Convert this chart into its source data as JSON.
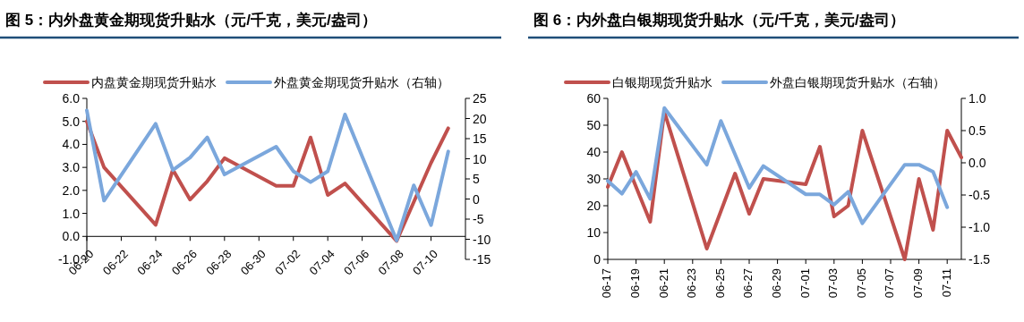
{
  "chart_data": [
    {
      "type": "line",
      "title": "图 5：内外盘黄金期现货升贴水（元/千克，美元/盎司）",
      "legend": "top",
      "grid": false,
      "line_style": "solid",
      "xlim": [
        "--06-20",
        "--07-12"
      ],
      "xticks": [
        {
          "value": "--06-20",
          "label": "06-20"
        },
        {
          "value": "--06-22",
          "label": "06-22"
        },
        {
          "value": "--06-24",
          "label": "06-24"
        },
        {
          "value": "--06-26",
          "label": "06-26"
        },
        {
          "value": "--06-28",
          "label": "06-28"
        },
        {
          "value": "--06-30",
          "label": "06-30"
        },
        {
          "value": "--07-02",
          "label": "07-02"
        },
        {
          "value": "--07-04",
          "label": "07-04"
        },
        {
          "value": "--07-06",
          "label": "07-06"
        },
        {
          "value": "--07-08",
          "label": "07-08"
        },
        {
          "value": "--07-10",
          "label": "07-10"
        }
      ],
      "ylim": [
        -1,
        6
      ],
      "yticks": [
        {
          "value": -1,
          "label": "-1.0"
        },
        {
          "value": 0,
          "label": "0.0"
        },
        {
          "value": 1,
          "label": "1.0"
        },
        {
          "value": 2,
          "label": "2.0"
        },
        {
          "value": 3,
          "label": "3.0"
        },
        {
          "value": 4,
          "label": "4.0"
        },
        {
          "value": 5,
          "label": "5.0"
        },
        {
          "value": 6,
          "label": "6.0"
        }
      ],
      "y2lim": [
        -15,
        25
      ],
      "y2ticks": [
        -15,
        -10,
        -5,
        0,
        5,
        10,
        15,
        20,
        25
      ],
      "series": [
        {
          "name": "内盘黄金期现货升贴水",
          "color": "#c0504d",
          "x": [
            "--06-20",
            "--06-21",
            "--06-24",
            "--06-25",
            "--06-26",
            "--06-27",
            "--06-28",
            "--07-01",
            "--07-02",
            "--07-03",
            "--07-04",
            "--07-05",
            "--07-08",
            "--07-09",
            "--07-10",
            "--07-11"
          ],
          "values": [
            5.0,
            3.0,
            0.5,
            2.9,
            1.6,
            2.4,
            3.4,
            2.2,
            2.2,
            4.3,
            1.8,
            2.3,
            -0.2,
            1.5,
            3.2,
            4.7
          ]
        },
        {
          "name": "外盘黄金期现货升贴水（右轴）",
          "color": "#7ba7dc",
          "axis": "y2",
          "x": [
            "--06-20",
            "--06-21",
            "--06-24",
            "--06-25",
            "--06-26",
            "--06-27",
            "--06-28",
            "--07-01",
            "--07-02",
            "--07-03",
            "--07-04",
            "--07-05",
            "--07-08",
            "--07-09",
            "--07-10",
            "--07-11"
          ],
          "values": [
            22,
            -0.4,
            18.7,
            7.2,
            10.3,
            15.3,
            6.1,
            13,
            6.9,
            4.2,
            6.9,
            21,
            -10.3,
            3.4,
            -6.5,
            11.8
          ]
        }
      ]
    },
    {
      "type": "line",
      "title": "图 6：内外盘白银期现货升贴水（元/千克，美元/盎司）",
      "legend": "top",
      "grid": false,
      "line_style": "solid",
      "xlim": [
        "--06-17",
        "--07-12"
      ],
      "xticks": [
        {
          "value": "--06-17",
          "label": "06-17"
        },
        {
          "value": "--06-19",
          "label": "06-19"
        },
        {
          "value": "--06-21",
          "label": "06-21"
        },
        {
          "value": "--06-23",
          "label": "06-23"
        },
        {
          "value": "--06-25",
          "label": "06-25"
        },
        {
          "value": "--06-27",
          "label": "06-27"
        },
        {
          "value": "--06-29",
          "label": "06-29"
        },
        {
          "value": "--07-01",
          "label": "07-01"
        },
        {
          "value": "--07-03",
          "label": "07-03"
        },
        {
          "value": "--07-05",
          "label": "07-05"
        },
        {
          "value": "--07-07",
          "label": "07-07"
        },
        {
          "value": "--07-09",
          "label": "07-09"
        },
        {
          "value": "--07-11",
          "label": "07-11"
        }
      ],
      "ylim": [
        0,
        60
      ],
      "yticks": [
        0,
        10,
        20,
        30,
        40,
        50,
        60
      ],
      "y2lim": [
        -1.5,
        1.0
      ],
      "y2ticks": [
        {
          "value": -1.5,
          "label": "-1.5"
        },
        {
          "value": -1,
          "label": "-1.0"
        },
        {
          "value": -0.5,
          "label": "-0.5"
        },
        {
          "value": 0,
          "label": "0.0"
        },
        {
          "value": 0.5,
          "label": "0.5"
        },
        {
          "value": 1,
          "label": "1.0"
        }
      ],
      "series": [
        {
          "name": "白银期现货升贴水",
          "color": "#c0504d",
          "x": [
            "--06-17",
            "--06-18",
            "--06-19",
            "--06-20",
            "--06-21",
            "--06-24",
            "--06-25",
            "--06-26",
            "--06-27",
            "--06-28",
            "--07-01",
            "--07-02",
            "--07-03",
            "--07-04",
            "--07-05",
            "--07-08",
            "--07-09",
            "--07-10",
            "--07-11",
            "--07-12"
          ],
          "values": [
            27,
            40,
            27,
            14,
            55,
            4,
            18,
            32,
            17,
            30,
            28,
            42,
            16,
            20,
            48,
            0,
            30,
            11,
            48,
            38
          ]
        },
        {
          "name": "外盘白银期现货升贴水（右轴）",
          "color": "#7ba7dc",
          "axis": "y2",
          "x": [
            "--06-17",
            "--06-18",
            "--06-19",
            "--06-20",
            "--06-21",
            "--06-24",
            "--06-25",
            "--06-27",
            "--06-28",
            "--07-01",
            "--07-02",
            "--07-03",
            "--07-04",
            "--07-05",
            "--07-08",
            "--07-09",
            "--07-10",
            "--07-11"
          ],
          "values": [
            -0.28,
            -0.48,
            -0.14,
            -0.56,
            0.85,
            -0.03,
            0.65,
            -0.39,
            -0.05,
            -0.49,
            -0.49,
            -0.65,
            -0.45,
            -0.94,
            -0.03,
            -0.03,
            -0.14,
            -0.69
          ]
        }
      ]
    }
  ]
}
